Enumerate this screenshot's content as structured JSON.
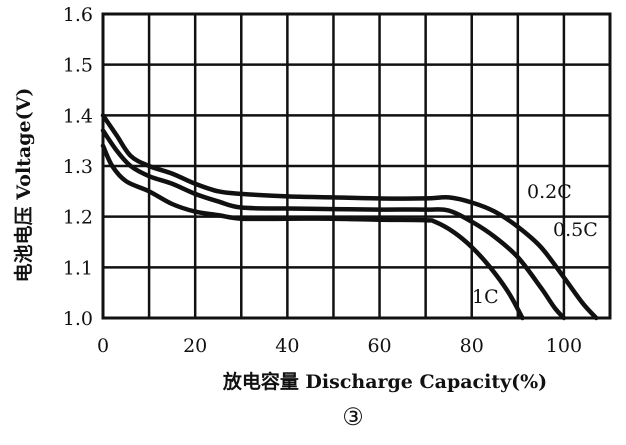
{
  "chart_data": {
    "type": "line",
    "xlabel": "放电容量 Discharge Capacity(%)",
    "ylabel": "电池电压 Voltage(V)",
    "xlim": [
      0,
      110
    ],
    "ylim": [
      1.0,
      1.6
    ],
    "x_ticks": [
      "0",
      "20",
      "40",
      "60",
      "80",
      "100"
    ],
    "y_ticks": [
      "1.0",
      "1.1",
      "1.2",
      "1.3",
      "1.4",
      "1.5",
      "1.6"
    ],
    "grid": true,
    "caption": "③",
    "series": [
      {
        "name": "0.2C",
        "points": [
          [
            0,
            1.4
          ],
          [
            3,
            1.36
          ],
          [
            6,
            1.32
          ],
          [
            10,
            1.3
          ],
          [
            15,
            1.285
          ],
          [
            20,
            1.265
          ],
          [
            25,
            1.25
          ],
          [
            30,
            1.245
          ],
          [
            40,
            1.24
          ],
          [
            50,
            1.238
          ],
          [
            60,
            1.236
          ],
          [
            70,
            1.236
          ],
          [
            75,
            1.238
          ],
          [
            80,
            1.228
          ],
          [
            85,
            1.21
          ],
          [
            90,
            1.18
          ],
          [
            95,
            1.14
          ],
          [
            100,
            1.08
          ],
          [
            104,
            1.03
          ],
          [
            107,
            1.0
          ]
        ]
      },
      {
        "name": "0.5C",
        "points": [
          [
            0,
            1.37
          ],
          [
            3,
            1.33
          ],
          [
            6,
            1.3
          ],
          [
            10,
            1.28
          ],
          [
            15,
            1.265
          ],
          [
            20,
            1.245
          ],
          [
            25,
            1.23
          ],
          [
            30,
            1.218
          ],
          [
            40,
            1.216
          ],
          [
            50,
            1.215
          ],
          [
            60,
            1.214
          ],
          [
            70,
            1.214
          ],
          [
            75,
            1.212
          ],
          [
            80,
            1.19
          ],
          [
            85,
            1.16
          ],
          [
            90,
            1.12
          ],
          [
            95,
            1.06
          ],
          [
            98,
            1.02
          ],
          [
            100,
            1.0
          ]
        ]
      },
      {
        "name": "1C",
        "points": [
          [
            0,
            1.34
          ],
          [
            2,
            1.3
          ],
          [
            5,
            1.27
          ],
          [
            10,
            1.25
          ],
          [
            15,
            1.225
          ],
          [
            20,
            1.21
          ],
          [
            25,
            1.203
          ],
          [
            30,
            1.196
          ],
          [
            40,
            1.196
          ],
          [
            50,
            1.196
          ],
          [
            60,
            1.194
          ],
          [
            70,
            1.193
          ],
          [
            72,
            1.19
          ],
          [
            76,
            1.17
          ],
          [
            80,
            1.14
          ],
          [
            84,
            1.1
          ],
          [
            88,
            1.05
          ],
          [
            91,
            1.0
          ]
        ]
      }
    ],
    "curve_labels": [
      "0.2C",
      "0.5C",
      "1C"
    ]
  }
}
